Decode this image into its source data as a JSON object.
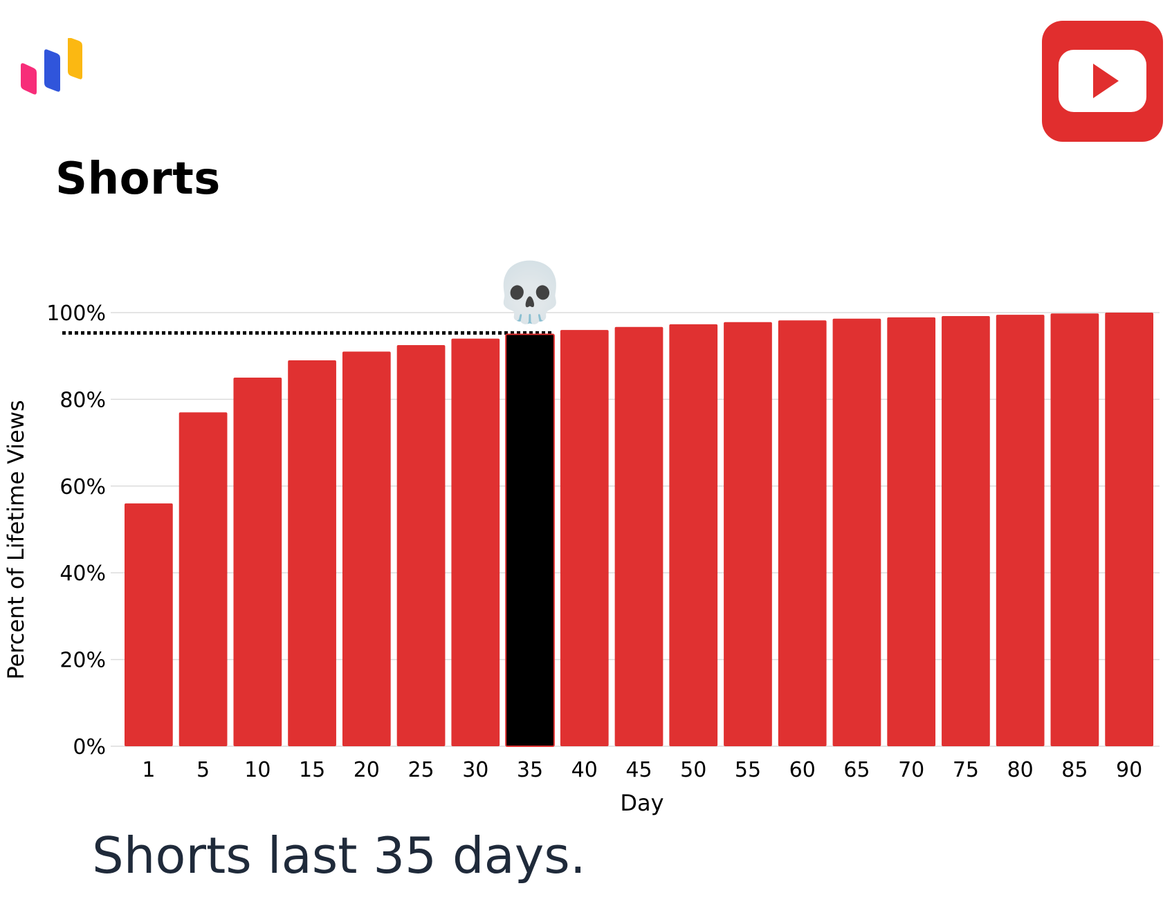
{
  "header": {
    "logo_icon": "bar-chart-logo-icon",
    "platform_icon": "youtube-play-icon",
    "platform_color": "#e12e2e"
  },
  "chart_data": {
    "type": "bar",
    "title": "Shorts",
    "xlabel": "Day",
    "ylabel": "Percent of Lifetime Views",
    "categories": [
      "1",
      "5",
      "10",
      "15",
      "20",
      "25",
      "30",
      "35",
      "40",
      "45",
      "50",
      "55",
      "60",
      "65",
      "70",
      "75",
      "80",
      "85",
      "90"
    ],
    "values": [
      56,
      77,
      85,
      89,
      91,
      92.5,
      94,
      95,
      96,
      96.7,
      97.3,
      97.8,
      98.2,
      98.6,
      98.9,
      99.2,
      99.5,
      99.8,
      100
    ],
    "ylim": [
      0,
      100
    ],
    "yticks": [
      "0%",
      "20%",
      "40%",
      "60%",
      "80%",
      "100%"
    ],
    "ytick_values": [
      0,
      20,
      40,
      60,
      80,
      100
    ],
    "grid": true,
    "highlight": {
      "category": "35",
      "color": "#000000",
      "marker_icon": "skull-icon",
      "marker_emoji": "💀",
      "reference_line": "dotted"
    },
    "bar_color": "#e03131"
  },
  "caption": "Shorts last 35 days."
}
